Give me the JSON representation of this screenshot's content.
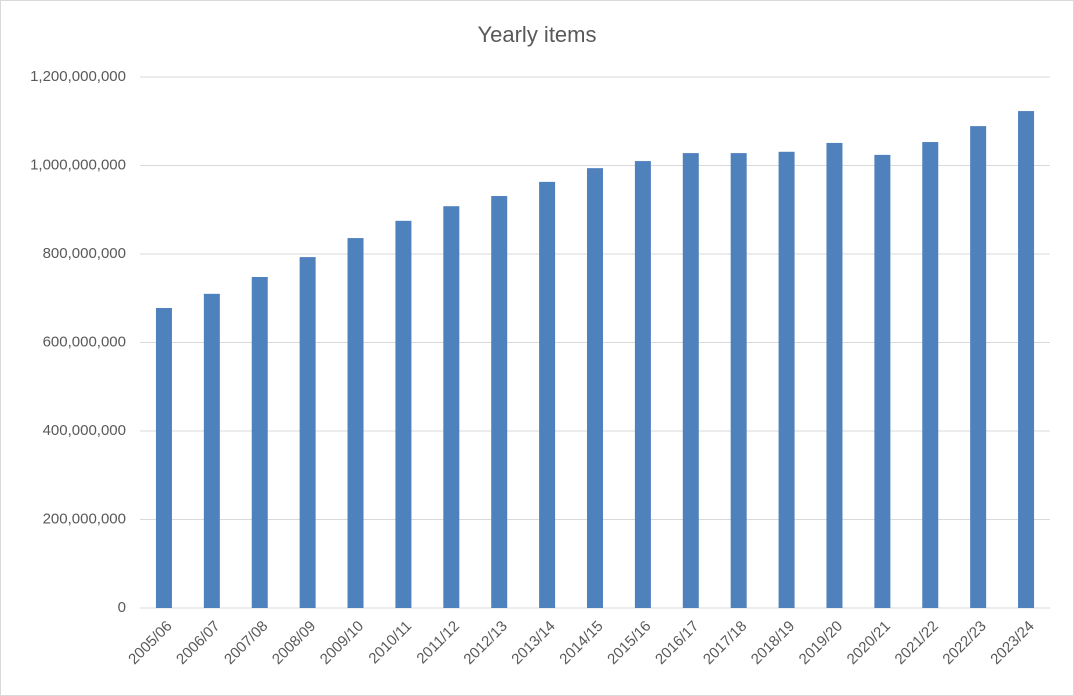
{
  "chart_data": {
    "type": "bar",
    "title": "Yearly items",
    "categories": [
      "2005/06",
      "2006/07",
      "2007/08",
      "2008/09",
      "2009/10",
      "2010/11",
      "2011/12",
      "2012/13",
      "2013/14",
      "2014/15",
      "2015/16",
      "2016/17",
      "2017/18",
      "2018/19",
      "2019/20",
      "2020/21",
      "2021/22",
      "2022/23",
      "2023/24"
    ],
    "values": [
      678000000,
      710000000,
      748000000,
      793000000,
      836000000,
      875000000,
      908000000,
      931000000,
      963000000,
      994000000,
      1010000000,
      1028000000,
      1028000000,
      1031000000,
      1051000000,
      1024000000,
      1053000000,
      1089000000,
      1123000000
    ],
    "color": "#4f81bd",
    "ylim": [
      0,
      1200000000
    ],
    "yticks": [
      0,
      {
        "value": 200000000,
        "label": "200,000,000"
      },
      {
        "value": 400000000,
        "label": "400,000,000"
      },
      {
        "value": 600000000,
        "label": "600,000,000"
      },
      {
        "value": 800000000,
        "label": "800,000,000"
      },
      {
        "value": 1000000000,
        "label": "1,000,000,000"
      },
      {
        "value": 1200000000,
        "label": "1,200,000,000"
      }
    ],
    "grid": true
  }
}
